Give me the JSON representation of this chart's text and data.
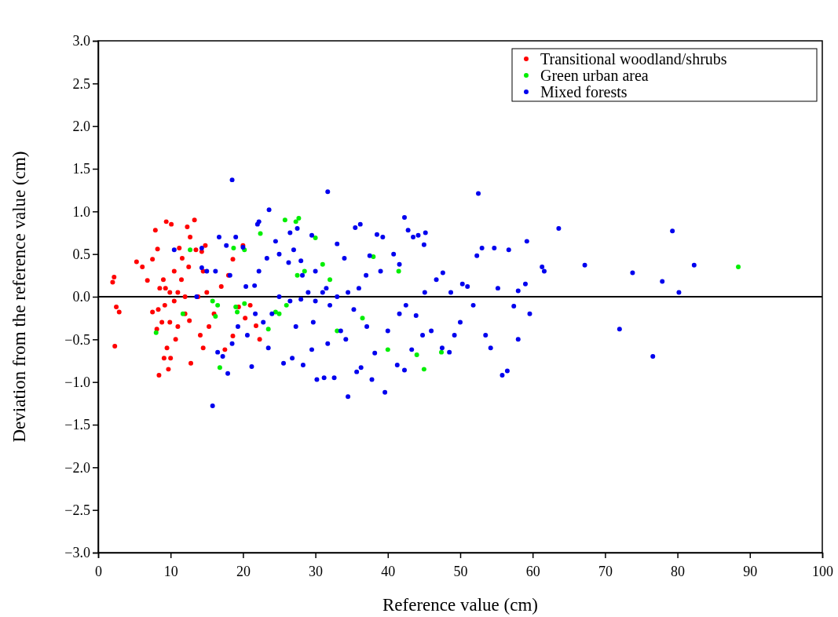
{
  "chart_data": {
    "type": "scatter",
    "xlabel": "Reference value (cm)",
    "ylabel": "Deviation from the reference value (cm)",
    "xlim": [
      0,
      100
    ],
    "xticks": [
      0,
      10,
      20,
      30,
      40,
      50,
      60,
      70,
      80,
      90,
      100
    ],
    "ylim": [
      -3,
      3
    ],
    "yticks": [
      {
        "value": -3,
        "label": "−3.0"
      },
      {
        "value": -2.5,
        "label": "−2.5"
      },
      {
        "value": -2,
        "label": "−2.0"
      },
      {
        "value": -1.5,
        "label": "−1.5"
      },
      {
        "value": -1,
        "label": "−1.0"
      },
      {
        "value": -0.5,
        "label": "−0.5"
      },
      {
        "value": 0,
        "label": "0.0"
      },
      {
        "value": 0.5,
        "label": "0.5"
      },
      {
        "value": 1,
        "label": "1.0"
      },
      {
        "value": 1.5,
        "label": "1.5"
      },
      {
        "value": 2,
        "label": "2.0"
      },
      {
        "value": 2.5,
        "label": "2.5"
      },
      {
        "value": 3,
        "label": "3.0"
      }
    ],
    "grid": false,
    "legend": "top right",
    "marker": "circle",
    "ref_lines": [
      {
        "axis": "y",
        "value": 0,
        "color": "#000000"
      }
    ],
    "series": [
      {
        "name": "Transitional woodland/shrubs",
        "color": "#ff0000",
        "x": [
          2,
          2.2,
          2.5,
          2.9,
          2.3,
          5.3,
          6.1,
          6.8,
          7.5,
          7.9,
          8.2,
          9.4,
          10.1,
          8.5,
          9,
          9.3,
          9.9,
          10.5,
          11.2,
          11.6,
          12.3,
          12.7,
          13.3,
          13.5,
          14.3,
          14.8,
          14.5,
          11,
          12,
          10.5,
          9.2,
          8.3,
          7.5,
          8.8,
          8.1,
          9.9,
          11,
          12,
          12.6,
          10.7,
          9.5,
          10,
          9.1,
          9.7,
          8.4,
          12.8,
          14.5,
          14.1,
          15.3,
          16,
          17,
          18,
          18.6,
          19.4,
          20,
          18.6,
          17.5,
          21,
          20.3,
          21.8,
          22.3,
          13.8,
          15,
          11.5,
          12.5
        ],
        "values": [
          0.17,
          0.23,
          -0.12,
          -0.18,
          -0.58,
          0.41,
          0.35,
          0.19,
          0.44,
          0.78,
          0.56,
          0.88,
          0.85,
          0.1,
          0.2,
          0.1,
          0.05,
          0.3,
          0.57,
          0.45,
          0.82,
          0.7,
          0.9,
          0.55,
          0.53,
          0.6,
          0.3,
          0.05,
          0,
          -0.05,
          -0.1,
          -0.15,
          -0.18,
          -0.3,
          -0.38,
          -0.3,
          -0.35,
          -0.2,
          -0.28,
          -0.5,
          -0.6,
          -0.72,
          -0.72,
          -0.85,
          -0.92,
          -0.78,
          -0.6,
          -0.45,
          -0.35,
          -0.2,
          0.12,
          0.25,
          0.44,
          -0.12,
          0.6,
          -0.46,
          -0.62,
          -0.1,
          -0.25,
          -0.34,
          -0.5,
          0,
          0.05,
          0.2,
          0.35
        ]
      },
      {
        "name": "Green urban area",
        "color": "#00ee00",
        "x": [
          8,
          12.7,
          11.7,
          15.8,
          16.5,
          16.8,
          16.2,
          18.7,
          19,
          19.2,
          20.2,
          22.4,
          24.5,
          25,
          25.8,
          27.3,
          27.7,
          26,
          27.5,
          28.5,
          23.5,
          30,
          31,
          32,
          33,
          36.5,
          38,
          40,
          41.5,
          44,
          45,
          47.4,
          88.4,
          20.2
        ],
        "values": [
          -0.42,
          0.55,
          -0.2,
          -0.05,
          -0.1,
          -0.83,
          -0.23,
          0.57,
          -0.12,
          -0.18,
          -0.08,
          0.74,
          -0.18,
          -0.2,
          0.9,
          0.88,
          0.92,
          -0.1,
          0.25,
          0.3,
          -0.38,
          0.69,
          0.38,
          0.2,
          -0.4,
          -0.25,
          0.47,
          -0.62,
          0.3,
          -0.68,
          -0.85,
          -0.65,
          0.35,
          0.55
        ]
      },
      {
        "name": "Mixed forests",
        "color": "#0000ee",
        "x": [
          18.5,
          31.7,
          52.5,
          23.6,
          22.2,
          22,
          27.5,
          26.5,
          29.5,
          20,
          19,
          16.7,
          17.7,
          16.2,
          18.2,
          15,
          14.3,
          14.3,
          10.5,
          13.6,
          20.4,
          21.6,
          22.2,
          23.3,
          24.5,
          25,
          26.3,
          27,
          28,
          28.2,
          29,
          30,
          31.5,
          33,
          34,
          35.5,
          36.2,
          37.5,
          38.5,
          39.3,
          42.3,
          42.8,
          43.5,
          44.2,
          45,
          45.2,
          40.8,
          41.6,
          39,
          37,
          36,
          34.5,
          33,
          32,
          30,
          31,
          28,
          26.5,
          25,
          24,
          22.8,
          21.7,
          20.6,
          19.3,
          18.5,
          17.2,
          17.9,
          15.8,
          16.5,
          21.2,
          23.5,
          25.6,
          26.8,
          28.3,
          29.5,
          30.2,
          31.2,
          32.6,
          34.5,
          35.7,
          36.3,
          37.8,
          39.6,
          41.3,
          42.3,
          43.3,
          38.2,
          34.2,
          33.5,
          31.7,
          29.7,
          27.3,
          35.3,
          37.1,
          40,
          41.6,
          42.5,
          43.9,
          45.1,
          46.7,
          47.6,
          48.7,
          49.2,
          50.3,
          51,
          51.8,
          52.3,
          53,
          54.7,
          55.2,
          53.5,
          54.2,
          55.8,
          56.5,
          56.7,
          57.4,
          58,
          58,
          59.2,
          59.6,
          59,
          61.3,
          61.6,
          63.6,
          67.2,
          72,
          73.8,
          76.6,
          77.9,
          79.3,
          80.2,
          82.3,
          46,
          47.5,
          48.5,
          50,
          44.8
        ],
        "values": [
          1.37,
          1.23,
          1.21,
          1.02,
          0.88,
          0.85,
          0.8,
          0.75,
          0.72,
          0.58,
          0.7,
          0.7,
          0.6,
          0.3,
          0.25,
          0.3,
          0.34,
          0.57,
          0.55,
          0,
          0.12,
          0.13,
          0.3,
          0.45,
          0.65,
          0.5,
          0.4,
          0.55,
          0.42,
          0.25,
          0.05,
          0.3,
          0.1,
          0.62,
          0.45,
          0.81,
          0.85,
          0.48,
          0.73,
          0.7,
          0.93,
          0.78,
          0.7,
          0.72,
          0.61,
          0.75,
          0.5,
          0.38,
          0.3,
          0.25,
          0.1,
          0.05,
          0,
          -0.1,
          -0.05,
          0.05,
          -0.03,
          -0.05,
          0,
          -0.2,
          -0.3,
          -0.2,
          -0.45,
          -0.35,
          -0.55,
          -0.7,
          -0.9,
          -1.28,
          -0.65,
          -0.82,
          -0.6,
          -0.78,
          -0.72,
          -0.8,
          -0.62,
          -0.97,
          -0.95,
          -0.95,
          -1.17,
          -0.88,
          -0.83,
          -0.97,
          -1.12,
          -0.8,
          -0.86,
          -0.62,
          -0.66,
          -0.5,
          -0.4,
          -0.55,
          -0.3,
          -0.35,
          -0.15,
          -0.35,
          -0.4,
          -0.2,
          -0.1,
          -0.22,
          0.05,
          0.2,
          0.28,
          0.05,
          -0.45,
          0.15,
          0.12,
          -0.1,
          0.48,
          0.57,
          0.57,
          0.1,
          -0.45,
          -0.6,
          -0.92,
          -0.87,
          0.55,
          -0.11,
          0.07,
          -0.5,
          0.65,
          -0.2,
          0.15,
          0.35,
          0.3,
          0.8,
          0.37,
          -0.38,
          0.28,
          -0.7,
          0.18,
          0.77,
          0.05,
          0.37,
          -0.4,
          -0.6,
          -0.65,
          -0.3,
          -0.45
        ]
      }
    ]
  }
}
